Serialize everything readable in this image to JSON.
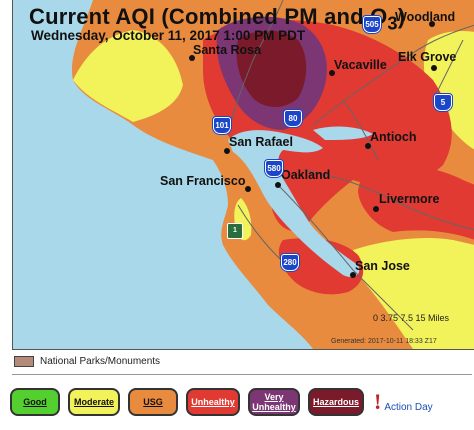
{
  "map": {
    "title": "Current AQI (Combined PM and O",
    "title_sub": "3",
    "title_end": ")",
    "subtitle": "Wednesday, October 11, 2017 1:00 PM PDT",
    "cities": {
      "woodland": "Woodland",
      "santa_rosa": "Santa Rosa",
      "vacaville": "Vacaville",
      "elk_grove": "Elk Grove",
      "san_rafael": "San Rafael",
      "antioch": "Antioch",
      "san_francisco": "San Francisco",
      "oakland": "Oakland",
      "livermore": "Livermore",
      "san_jose": "San Jose"
    },
    "highways": {
      "i101": "101",
      "i80": "80",
      "i580": "580",
      "i5": "5",
      "ca1": "1",
      "i280": "280",
      "i505": "505"
    },
    "scale_label": "0  3.75 7.5       15 Miles",
    "generated": "Generated: 2017-10-11 18:33 Z17",
    "colors": {
      "water": "#a8d8ea",
      "good": "#53cf30",
      "moderate": "#f2f25a",
      "usg": "#e88b3e",
      "unhealthy": "#e03a33",
      "very_unhealthy": "#7d3674",
      "hazardous": "#7a1a2a",
      "parks": "#b58a78"
    }
  },
  "legend": {
    "parks_label": "National Parks/Monuments"
  },
  "aqi_scale": {
    "good": "Good",
    "moderate": "Moderate",
    "usg": "USG",
    "unhealthy": "Unhealthy",
    "very_unhealthy": "Very Unhealthy",
    "hazardous": "Hazardous",
    "action_day": "Action Day"
  }
}
